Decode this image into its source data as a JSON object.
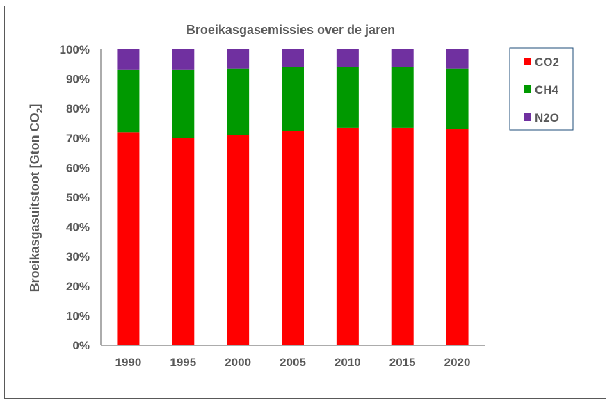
{
  "chart_data": {
    "type": "bar",
    "stacked": true,
    "title": "Broeikasgasemissies over de jaren",
    "xlabel": "",
    "ylabel": "Broeikasgasuitstoot  [Gton CO",
    "ylabel_subscript": "2",
    "ylabel_suffix": "]",
    "categories": [
      "1990",
      "1995",
      "2000",
      "2005",
      "2010",
      "2015",
      "2020"
    ],
    "series": [
      {
        "name": "CO2",
        "color": "#ff0000",
        "values": [
          72,
          70,
          71,
          72.5,
          73.5,
          73.5,
          73
        ]
      },
      {
        "name": "CH4",
        "color": "#009900",
        "values": [
          21,
          23,
          22.5,
          21.5,
          20.5,
          20.5,
          20.5
        ]
      },
      {
        "name": "N2O",
        "color": "#7030a0",
        "values": [
          7,
          7,
          6.5,
          6,
          6,
          6,
          6.5
        ]
      }
    ],
    "ylim": [
      0,
      100
    ],
    "yticks": [
      "0%",
      "10%",
      "20%",
      "30%",
      "40%",
      "50%",
      "60%",
      "70%",
      "80%",
      "90%",
      "100%"
    ],
    "grid": false,
    "legend_position": "top-right"
  }
}
